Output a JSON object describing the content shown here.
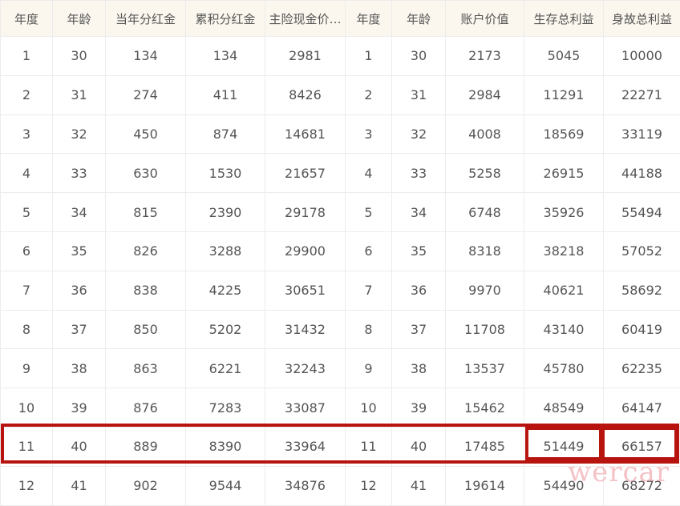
{
  "left_table": {
    "headers": [
      "年度",
      "年龄",
      "当年分红金",
      "累积分红金",
      "主险现金价…"
    ],
    "rows": [
      [
        "1",
        "30",
        "134",
        "134",
        "2981"
      ],
      [
        "2",
        "31",
        "274",
        "411",
        "8426"
      ],
      [
        "3",
        "32",
        "450",
        "874",
        "14681"
      ],
      [
        "4",
        "33",
        "630",
        "1530",
        "21657"
      ],
      [
        "5",
        "34",
        "815",
        "2390",
        "29178"
      ],
      [
        "6",
        "35",
        "826",
        "3288",
        "29900"
      ],
      [
        "7",
        "36",
        "838",
        "4225",
        "30651"
      ],
      [
        "8",
        "37",
        "850",
        "5202",
        "31432"
      ],
      [
        "9",
        "38",
        "863",
        "6221",
        "32243"
      ],
      [
        "10",
        "39",
        "876",
        "7283",
        "33087"
      ],
      [
        "11",
        "40",
        "889",
        "8390",
        "33964"
      ],
      [
        "12",
        "41",
        "902",
        "9544",
        "34876"
      ]
    ]
  },
  "right_table": {
    "headers": [
      "年度",
      "年龄",
      "账户价值",
      "生存总利益",
      "身故总利益"
    ],
    "rows": [
      [
        "1",
        "30",
        "2173",
        "5045",
        "10000"
      ],
      [
        "2",
        "31",
        "2984",
        "11291",
        "22271"
      ],
      [
        "3",
        "32",
        "4008",
        "18569",
        "33119"
      ],
      [
        "4",
        "33",
        "5258",
        "26915",
        "44188"
      ],
      [
        "5",
        "34",
        "6748",
        "35926",
        "55494"
      ],
      [
        "6",
        "35",
        "8318",
        "38218",
        "57052"
      ],
      [
        "7",
        "36",
        "9970",
        "40621",
        "58692"
      ],
      [
        "8",
        "37",
        "11708",
        "43140",
        "60419"
      ],
      [
        "9",
        "38",
        "13537",
        "45780",
        "62235"
      ],
      [
        "10",
        "39",
        "15462",
        "48549",
        "64147"
      ],
      [
        "11",
        "40",
        "17485",
        "51449",
        "66157"
      ],
      [
        "12",
        "41",
        "19614",
        "54490",
        "68272"
      ]
    ]
  },
  "highlight": {
    "row_year": "11",
    "color": "#b8140f"
  },
  "watermark": "wercar"
}
